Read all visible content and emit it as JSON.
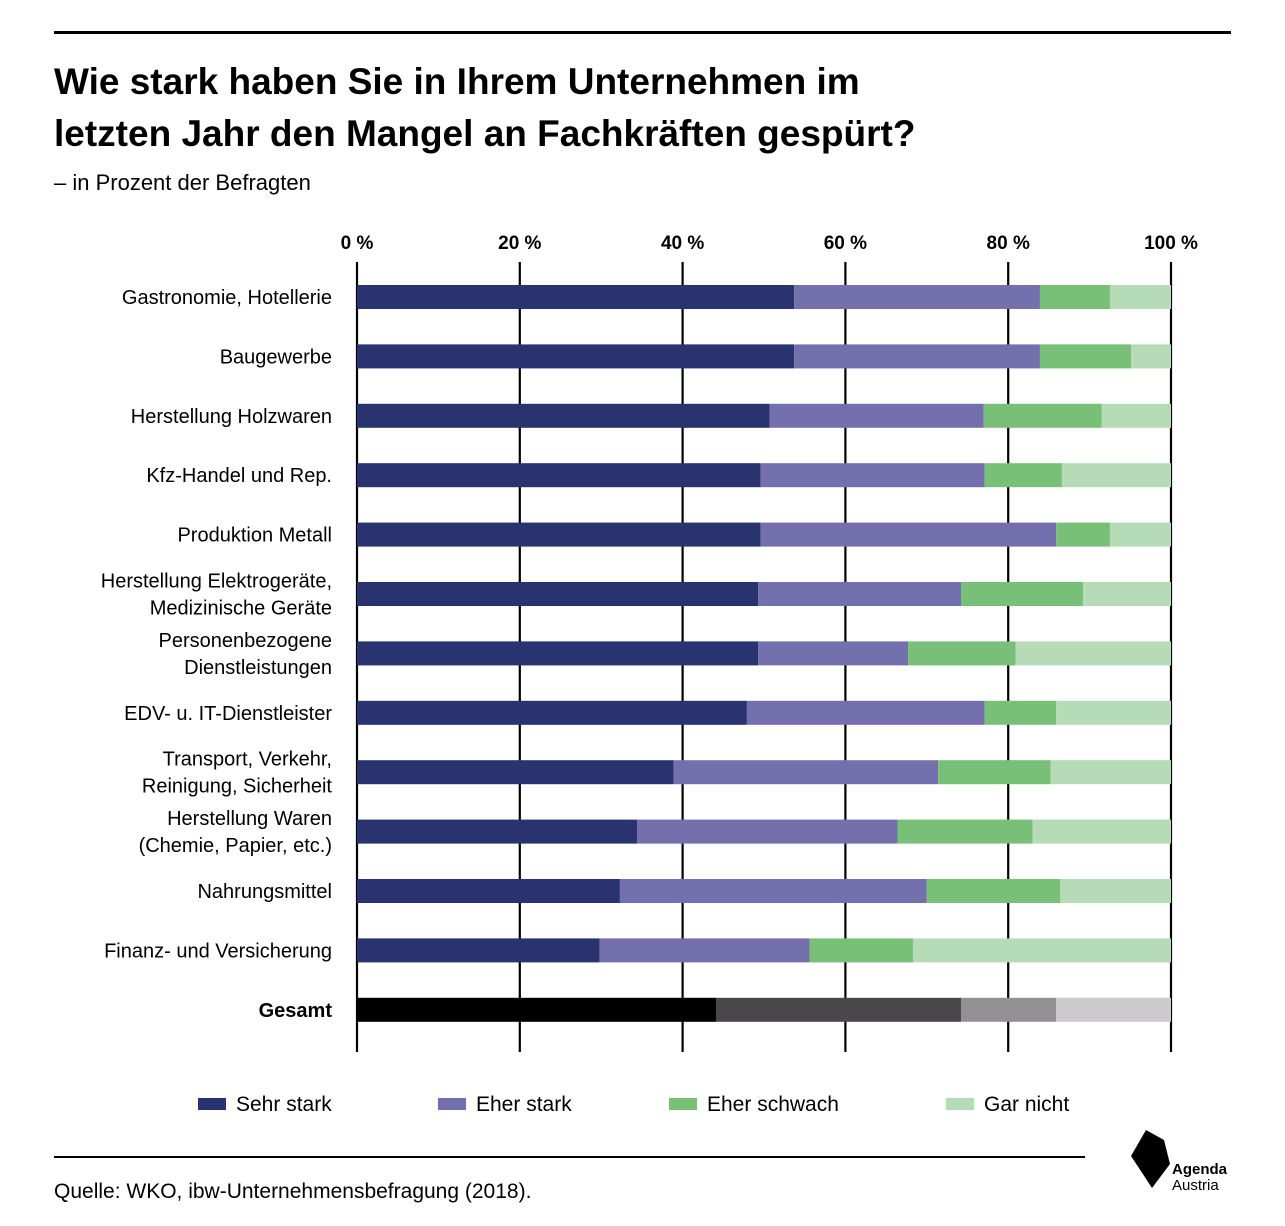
{
  "title_lines": [
    "Wie stark haben Sie in Ihrem Unternehmen im",
    "letzten Jahr den Mangel an Fachkräften gespürt?"
  ],
  "subtitle": "– in Prozent der Befragten",
  "source": "Quelle: WKO, ibw-Unternehmensbefragung (2018).",
  "logo": {
    "line1": "Agenda",
    "line2": "Austria"
  },
  "chart_data": {
    "type": "bar",
    "orientation": "horizontal",
    "stacked": true,
    "xlim": [
      0,
      100
    ],
    "x_ticks": [
      0,
      20,
      40,
      60,
      80,
      100
    ],
    "x_tick_labels": [
      "0 %",
      "20 %",
      "40 %",
      "60 %",
      "80 %",
      "100 %"
    ],
    "grid": true,
    "legend_position": "bottom",
    "categories": [
      [
        "Gastronomie, Hotellerie"
      ],
      [
        "Baugewerbe"
      ],
      [
        "Herstellung Holzwaren"
      ],
      [
        "Kfz-Handel und Rep."
      ],
      [
        "Produktion Metall"
      ],
      [
        "Herstellung Elektrogeräte,",
        "Medizinische Geräte"
      ],
      [
        "Personenbezogene",
        "Dienstleistungen"
      ],
      [
        "EDV- u. IT-Dienstleister"
      ],
      [
        "Transport, Verkehr,",
        "Reinigung, Sicherheit"
      ],
      [
        "Herstellung Waren",
        "(Chemie, Papier, etc.)"
      ],
      [
        "Nahrungsmittel"
      ],
      [
        "Finanz- und Versicherung"
      ],
      [
        "Gesamt"
      ]
    ],
    "highlight_category_index": 12,
    "series": [
      {
        "name": "Sehr stark",
        "color": "#283370",
        "highlight_color": "#000000",
        "values": [
          53.7,
          53.7,
          50.7,
          49.6,
          49.6,
          49.3,
          49.3,
          47.9,
          38.9,
          34.4,
          32.3,
          29.8,
          44.1
        ]
      },
      {
        "name": "Eher stark",
        "color": "#7470ad",
        "highlight_color": "#4a474a",
        "values": [
          30.2,
          30.2,
          26.3,
          27.5,
          36.3,
          24.9,
          18.4,
          29.2,
          32.5,
          32.0,
          37.7,
          25.8,
          30.1
        ]
      },
      {
        "name": "Eher schwach",
        "color": "#78bf78",
        "highlight_color": "#929092",
        "values": [
          8.6,
          11.2,
          14.5,
          9.5,
          6.6,
          15.0,
          13.2,
          8.8,
          13.8,
          16.6,
          16.4,
          12.7,
          11.7
        ]
      },
      {
        "name": "Gar nicht",
        "color": "#b6dbb7",
        "highlight_color": "#cccacc",
        "values": [
          7.5,
          4.9,
          8.5,
          13.4,
          7.5,
          10.8,
          19.1,
          14.1,
          14.8,
          17.0,
          13.6,
          31.7,
          14.1
        ]
      }
    ]
  }
}
